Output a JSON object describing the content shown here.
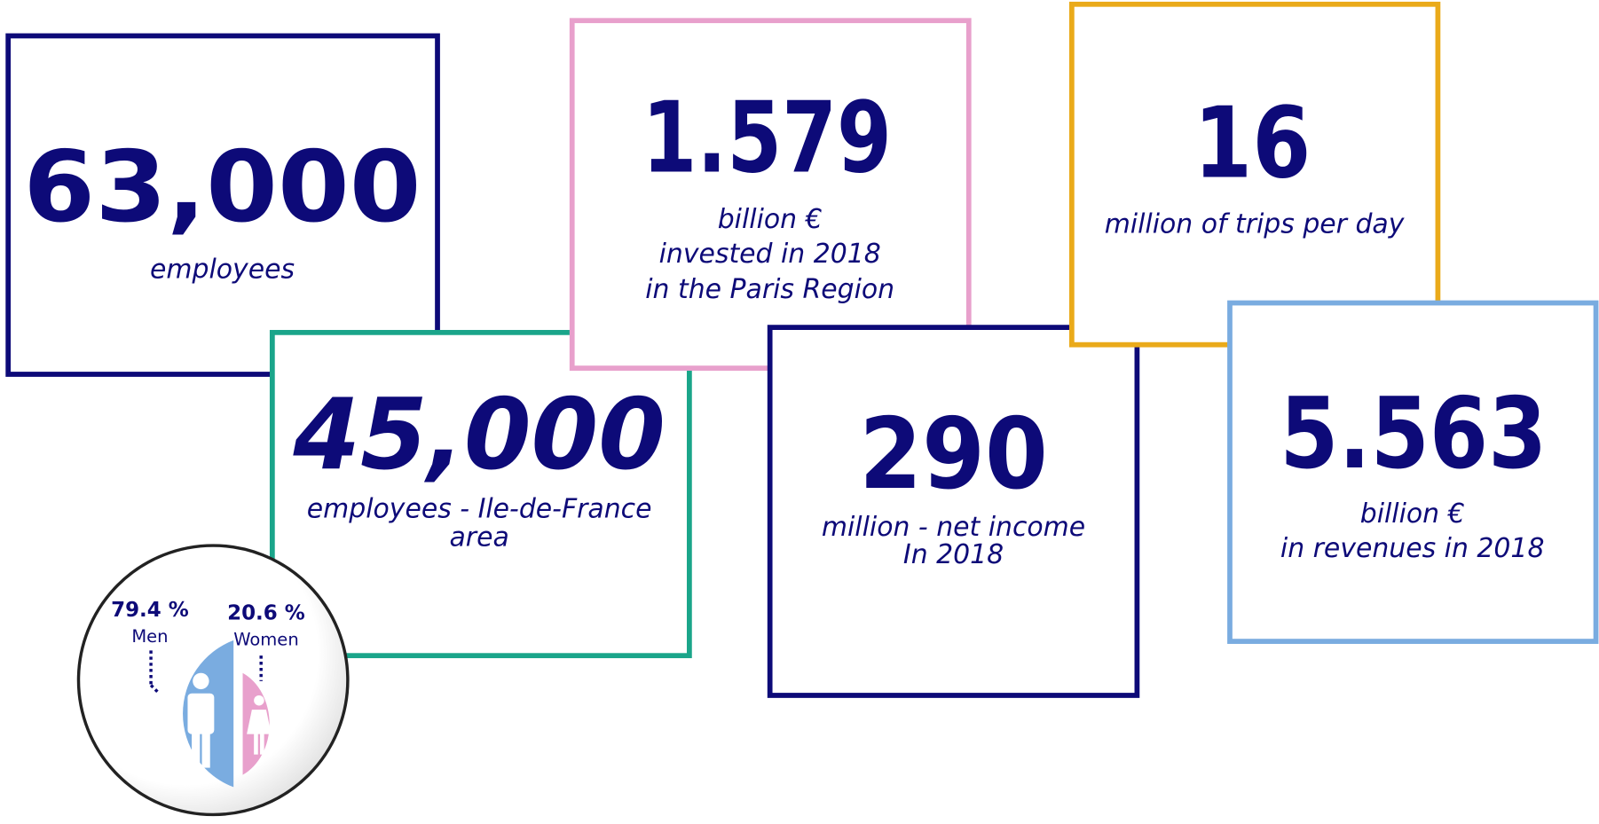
{
  "cards": [
    {
      "value": "63,000",
      "lines": [
        "employees"
      ]
    },
    {
      "value": "45,000",
      "lines": [
        "employees - Ile-de-France",
        "area"
      ]
    },
    {
      "value": "1.579",
      "lines": [
        "billion €",
        "invested in 2018",
        "in the Paris Region"
      ]
    },
    {
      "value": "290",
      "lines": [
        "million - net income",
        "In 2018"
      ]
    },
    {
      "value": "16",
      "lines": [
        "million of trips per day"
      ]
    },
    {
      "value": "5.563",
      "lines": [
        "billion €",
        "in revenues in 2018"
      ]
    }
  ],
  "gender": {
    "men": {
      "share": "79.4 %",
      "label": "Men"
    },
    "women": {
      "share": "20.6 %",
      "label": "Women"
    }
  }
}
